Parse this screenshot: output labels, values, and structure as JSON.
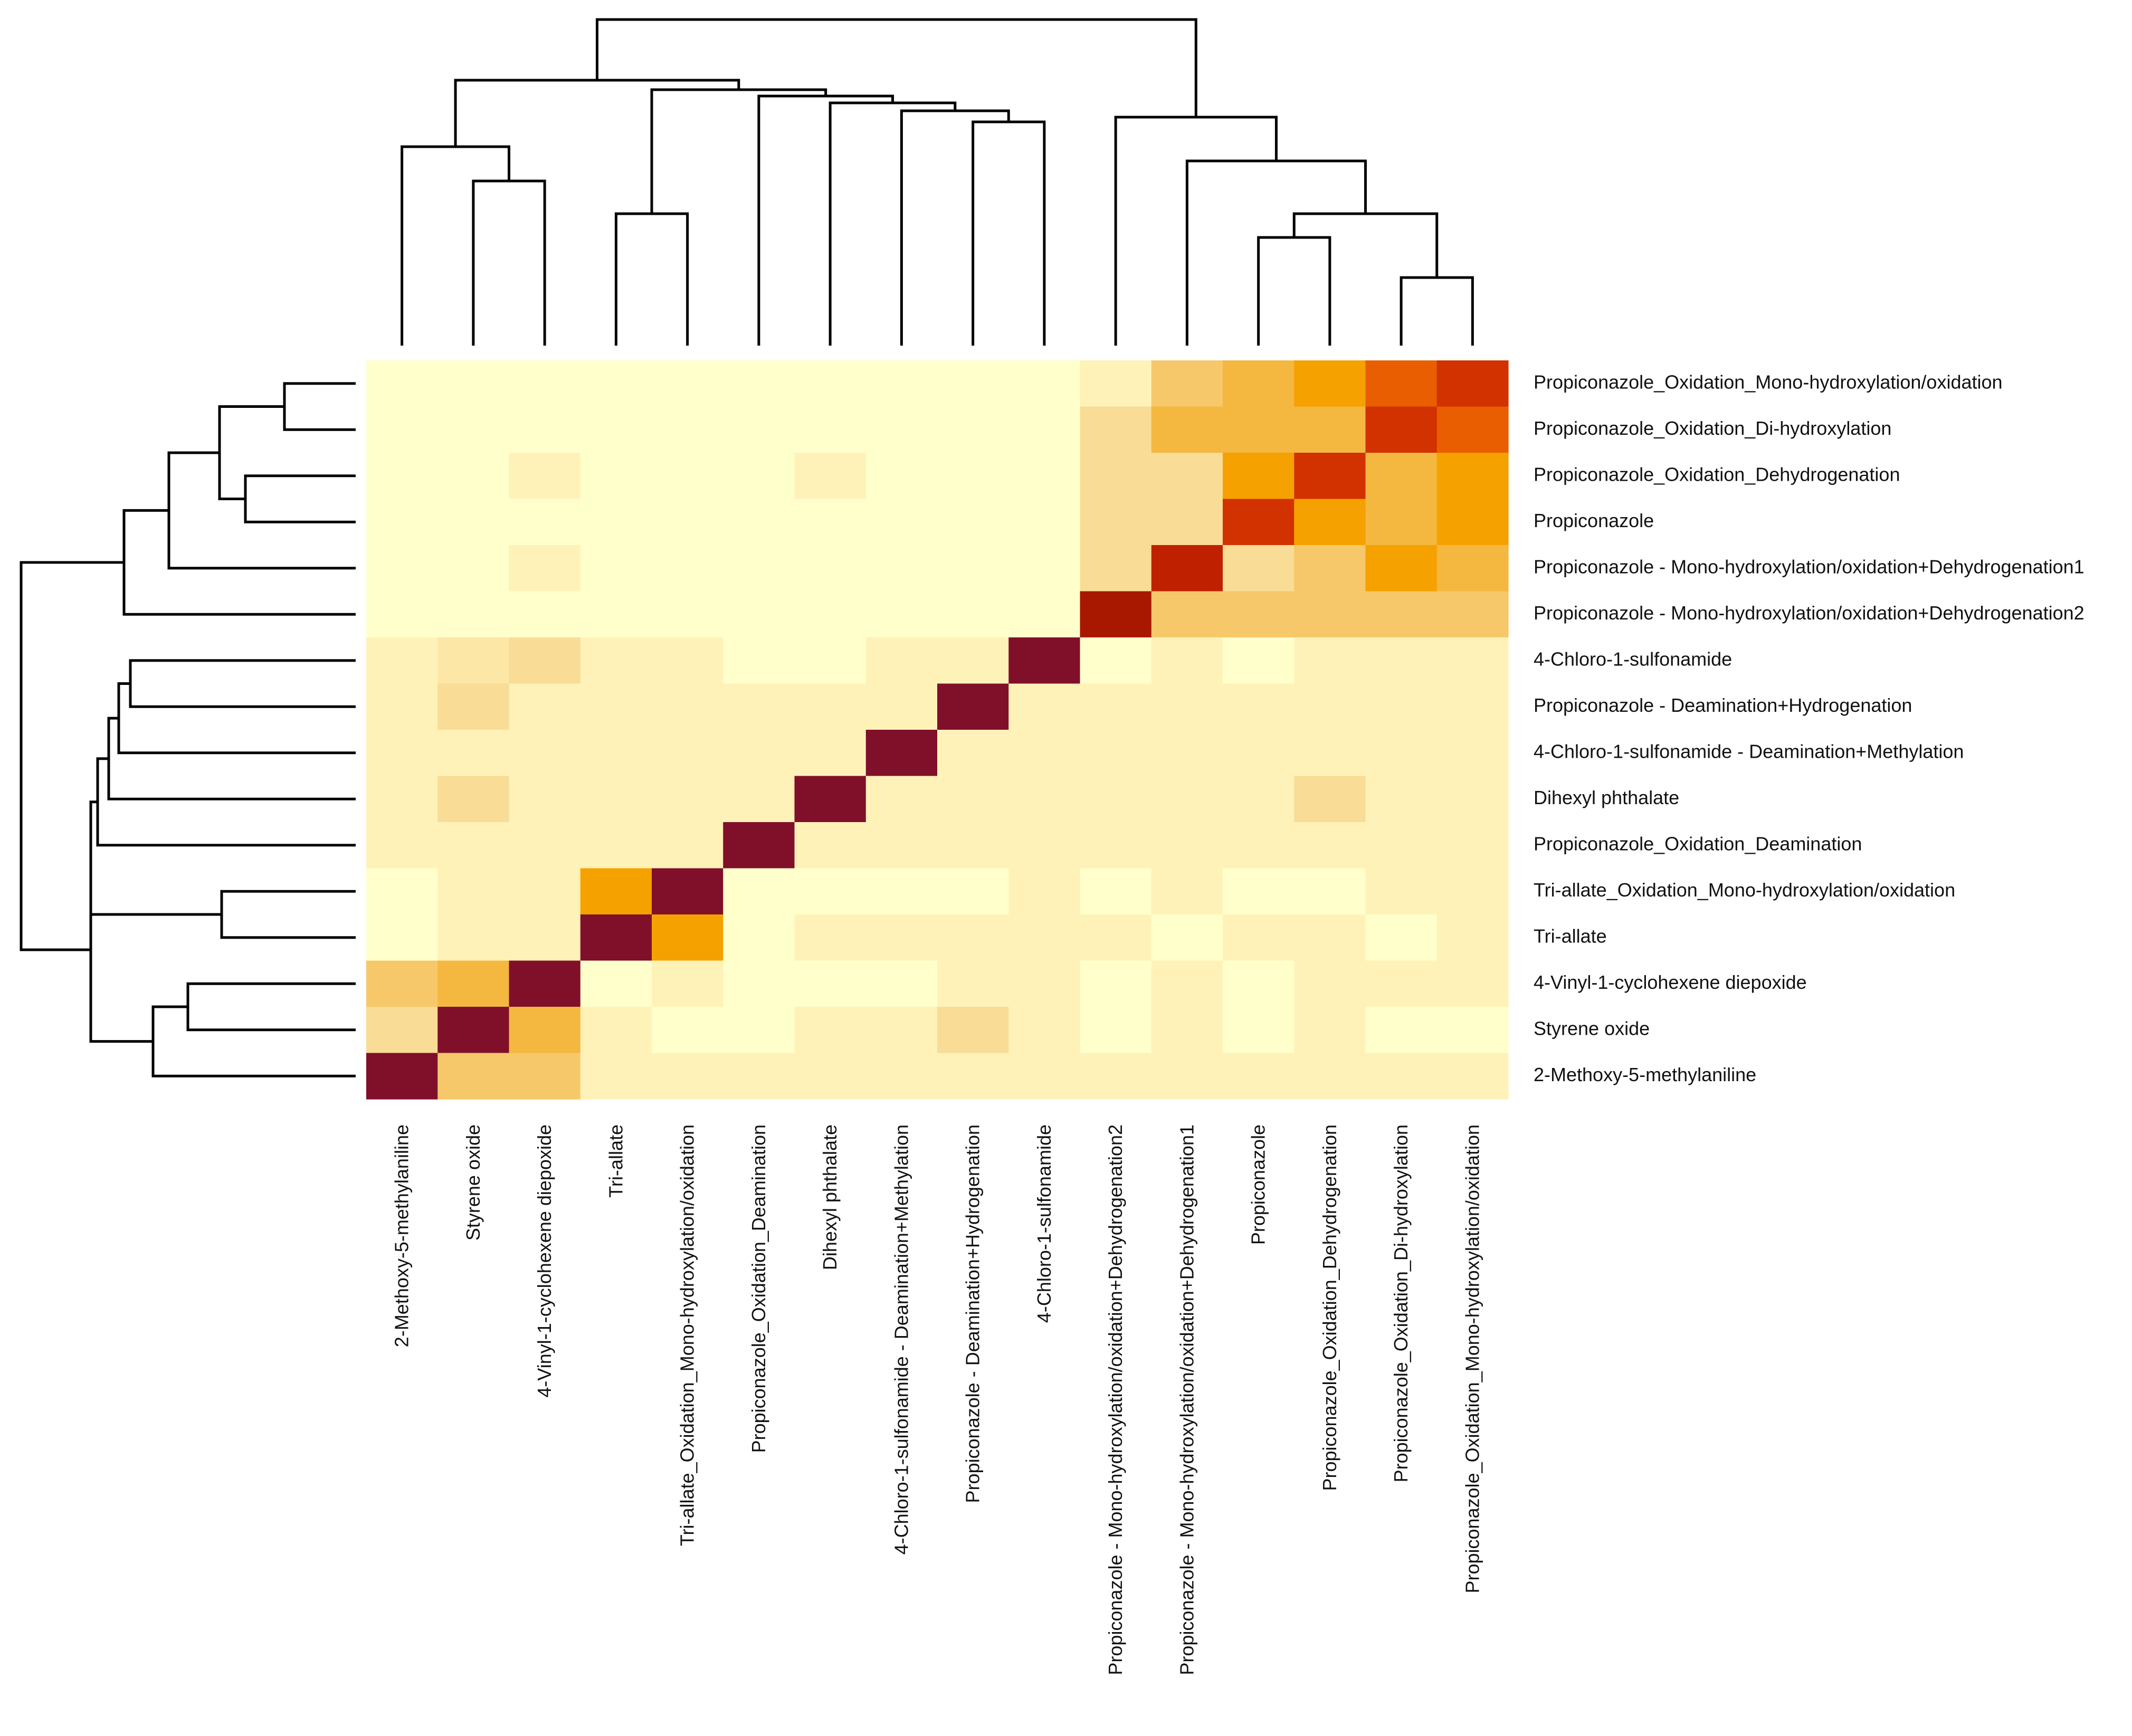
{
  "chart_data": {
    "type": "heatmap",
    "title": "",
    "xlabel": "",
    "ylabel": "",
    "color_scale": [
      "#ffffcc",
      "#fff2b8",
      "#f9dc95",
      "#f7c869",
      "#f4b740",
      "#f5a100",
      "#f07c00",
      "#e04000",
      "#c42200",
      "#a81800",
      "#800f2a"
    ],
    "columns": [
      "2-Methoxy-5-methylaniline",
      "Styrene oxide",
      "4-Vinyl-1-cyclohexene diepoxide",
      "Tri-allate",
      "Tri-allate_Oxidation_Mono-hydroxylation/oxidation",
      "Propiconazole_Oxidation_Deamination",
      "Dihexyl phthalate",
      "4-Chloro-1-sulfonamide - Deamination+Methylation",
      "Propiconazole - Deamination+Hydrogenation",
      "4-Chloro-1-sulfonamide",
      "Propiconazole - Mono-hydroxylation/oxidation+Dehydrogenation2",
      "Propiconazole - Mono-hydroxylation/oxidation+Dehydrogenation1",
      "Propiconazole",
      "Propiconazole_Oxidation_Dehydrogenation",
      "Propiconazole_Oxidation_Di-hydroxylation",
      "Propiconazole_Oxidation_Mono-hydroxylation/oxidation"
    ],
    "rows": [
      "Propiconazole_Oxidation_Mono-hydroxylation/oxidation",
      "Propiconazole_Oxidation_Di-hydroxylation",
      "Propiconazole_Oxidation_Dehydrogenation",
      "Propiconazole",
      "Propiconazole - Mono-hydroxylation/oxidation+Dehydrogenation1",
      "Propiconazole - Mono-hydroxylation/oxidation+Dehydrogenation2",
      "4-Chloro-1-sulfonamide",
      "Propiconazole - Deamination+Hydrogenation",
      "4-Chloro-1-sulfonamide - Deamination+Methylation",
      "Dihexyl phthalate",
      "Propiconazole_Oxidation_Deamination",
      "Tri-allate_Oxidation_Mono-hydroxylation/oxidation",
      "Tri-allate",
      "4-Vinyl-1-cyclohexene diepoxide",
      "Styrene oxide",
      "2-Methoxy-5-methylaniline"
    ],
    "values": [
      [
        0.0,
        0.0,
        0.0,
        0.0,
        0.0,
        0.0,
        0.0,
        0.0,
        0.0,
        0.0,
        0.1,
        0.3,
        0.4,
        0.5,
        0.65,
        0.75
      ],
      [
        0.0,
        0.0,
        0.0,
        0.0,
        0.0,
        0.0,
        0.0,
        0.0,
        0.0,
        0.0,
        0.2,
        0.4,
        0.4,
        0.4,
        0.75,
        0.65
      ],
      [
        0.0,
        0.0,
        0.1,
        0.0,
        0.0,
        0.0,
        0.1,
        0.0,
        0.0,
        0.0,
        0.2,
        0.2,
        0.5,
        0.75,
        0.4,
        0.5
      ],
      [
        0.0,
        0.0,
        0.0,
        0.0,
        0.0,
        0.0,
        0.0,
        0.0,
        0.0,
        0.0,
        0.2,
        0.2,
        0.75,
        0.5,
        0.4,
        0.5
      ],
      [
        0.0,
        0.0,
        0.1,
        0.0,
        0.0,
        0.0,
        0.0,
        0.0,
        0.0,
        0.0,
        0.2,
        0.82,
        0.2,
        0.3,
        0.5,
        0.4
      ],
      [
        0.0,
        0.0,
        0.0,
        0.0,
        0.0,
        0.0,
        0.0,
        0.0,
        0.0,
        0.0,
        0.9,
        0.3,
        0.3,
        0.3,
        0.3,
        0.3
      ],
      [
        0.1,
        0.15,
        0.2,
        0.1,
        0.1,
        0.0,
        0.0,
        0.1,
        0.1,
        1.0,
        0.0,
        0.1,
        0.0,
        0.1,
        0.1,
        0.1
      ],
      [
        0.1,
        0.2,
        0.1,
        0.1,
        0.1,
        0.1,
        0.1,
        0.1,
        1.0,
        0.1,
        0.1,
        0.1,
        0.1,
        0.1,
        0.1,
        0.1
      ],
      [
        0.1,
        0.1,
        0.1,
        0.1,
        0.1,
        0.1,
        0.1,
        1.0,
        0.1,
        0.1,
        0.1,
        0.1,
        0.1,
        0.1,
        0.1,
        0.1
      ],
      [
        0.1,
        0.2,
        0.1,
        0.1,
        0.1,
        0.1,
        1.0,
        0.1,
        0.1,
        0.1,
        0.1,
        0.1,
        0.1,
        0.2,
        0.1,
        0.1
      ],
      [
        0.1,
        0.1,
        0.1,
        0.1,
        0.1,
        1.0,
        0.1,
        0.1,
        0.1,
        0.1,
        0.1,
        0.1,
        0.1,
        0.1,
        0.1,
        0.1
      ],
      [
        0.0,
        0.1,
        0.1,
        0.5,
        1.0,
        0.0,
        0.0,
        0.0,
        0.0,
        0.1,
        0.0,
        0.1,
        0.0,
        0.0,
        0.1,
        0.1
      ],
      [
        0.0,
        0.1,
        0.1,
        1.0,
        0.5,
        0.0,
        0.1,
        0.1,
        0.1,
        0.1,
        0.1,
        0.0,
        0.1,
        0.1,
        0.0,
        0.1
      ],
      [
        0.3,
        0.4,
        1.0,
        0.0,
        0.1,
        0.0,
        0.0,
        0.0,
        0.1,
        0.1,
        0.0,
        0.1,
        0.0,
        0.1,
        0.1,
        0.1
      ],
      [
        0.2,
        1.0,
        0.4,
        0.1,
        0.0,
        0.0,
        0.1,
        0.1,
        0.2,
        0.1,
        0.0,
        0.1,
        0.0,
        0.1,
        0.0,
        0.0
      ],
      [
        1.0,
        0.3,
        0.3,
        0.1,
        0.1,
        0.1,
        0.1,
        0.1,
        0.1,
        0.1,
        0.1,
        0.1,
        0.1,
        0.1,
        0.1,
        0.1
      ]
    ]
  }
}
